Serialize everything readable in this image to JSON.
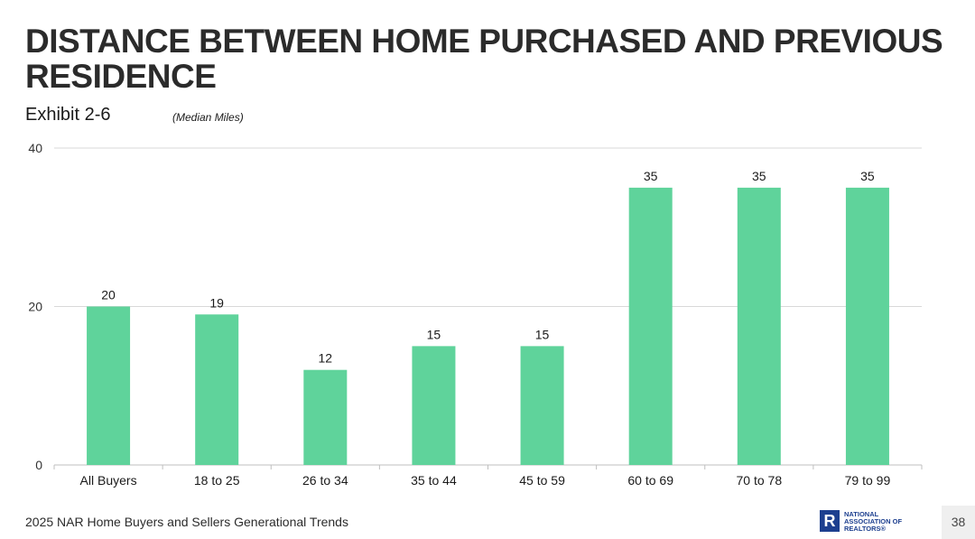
{
  "header": {
    "title": "DISTANCE BETWEEN HOME PURCHASED AND PREVIOUS RESIDENCE",
    "exhibit": "Exhibit 2-6",
    "subtitle": "(Median Miles)"
  },
  "footer": {
    "source": "2025 NAR Home Buyers and Sellers Generational Trends",
    "logo_text": [
      "NATIONAL",
      "ASSOCIATION OF",
      "REALTORS®"
    ],
    "logo_mark": "R",
    "page_number": "38"
  },
  "colors": {
    "bar": "#5fd39b",
    "grid": "#d9d9d9",
    "axis": "#bfbfbf",
    "text": "#1a1a1a"
  },
  "chart_data": {
    "type": "bar",
    "categories": [
      "All Buyers",
      "18 to 25",
      "26 to 34",
      "35 to 44",
      "45 to 59",
      "60 to 69",
      "70 to 78",
      "79 to 99"
    ],
    "values": [
      20,
      19,
      12,
      15,
      15,
      35,
      35,
      35
    ],
    "data_labels": [
      "20",
      "19",
      "12",
      "15",
      "15",
      "35",
      "35",
      "35"
    ],
    "yticks": [
      0,
      20,
      40
    ],
    "ylim": [
      0,
      40
    ],
    "grid": true,
    "legend": false
  }
}
